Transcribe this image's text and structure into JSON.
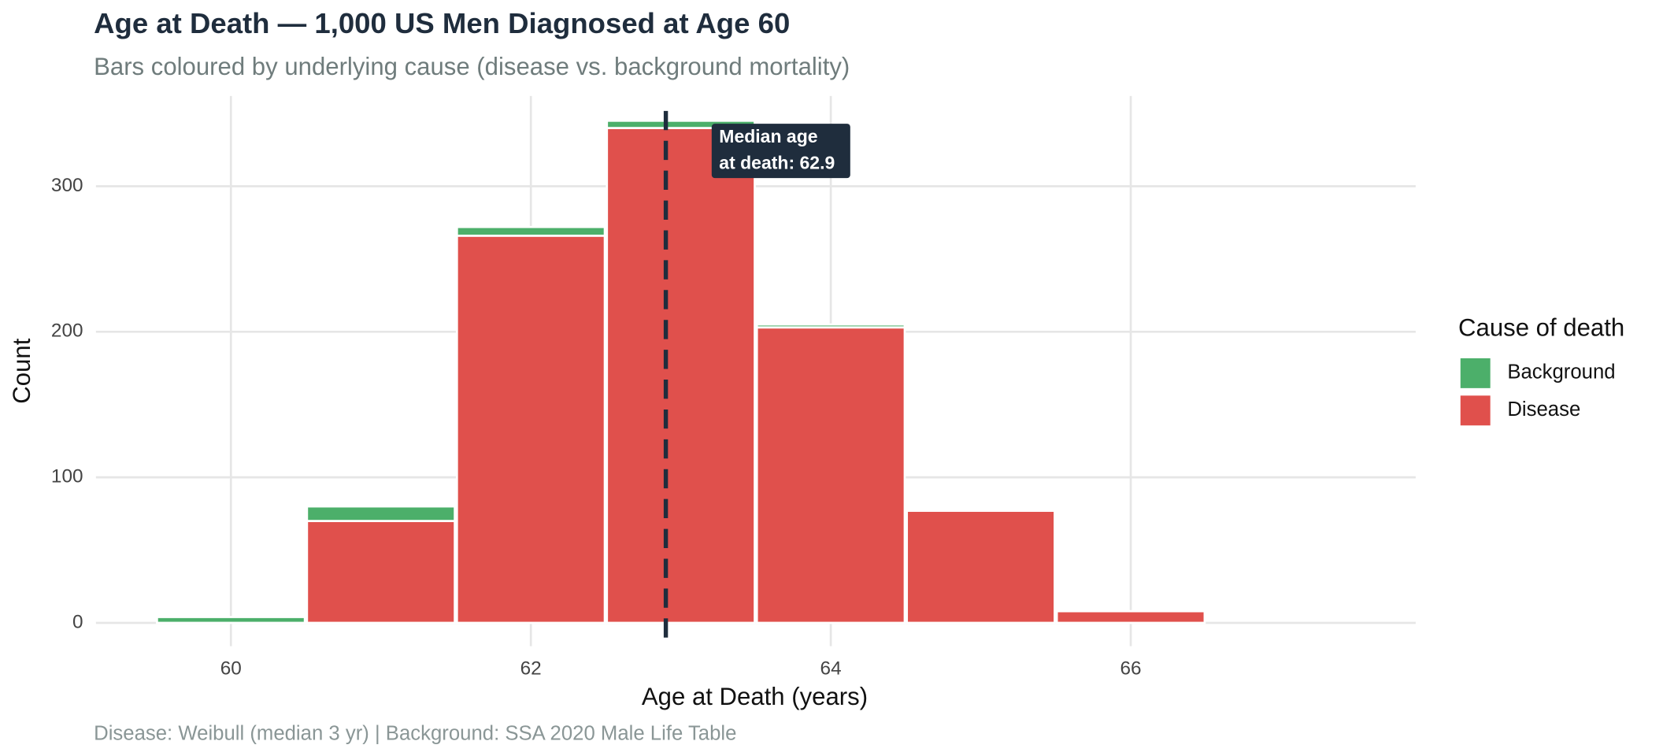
{
  "chart_data": {
    "type": "histogram",
    "stacked": true,
    "title": "Age at Death — 1,000 US Men Diagnosed at Age 60",
    "subtitle": "Bars coloured by underlying cause (disease vs. background mortality)",
    "caption": "Disease: Weibull (median 3 yr)  |  Background: SSA 2020 Male Life Table",
    "x_label": "Age at Death (years)",
    "y_label": "Count",
    "bins": [
      59.5,
      60.5,
      61.5,
      62.5,
      63.5,
      64.5,
      65.5,
      66.5
    ],
    "series": [
      {
        "name": "Disease",
        "color": "#e0504c",
        "values": [
          0,
          70,
          266,
          340,
          203,
          77,
          8
        ]
      },
      {
        "name": "Background",
        "color": "#4caf6a",
        "values": [
          4,
          10,
          6,
          5,
          2,
          0,
          0
        ]
      }
    ],
    "xlim": [
      59.1,
      67.9
    ],
    "xticks": [
      60,
      62,
      64,
      66
    ],
    "ylim": [
      -16,
      362
    ],
    "yticks": [
      0,
      100,
      200,
      300
    ],
    "grid": true,
    "legend_position": "right",
    "legend_title": "Cause of death",
    "median_x": 62.9,
    "annotation": [
      "Median age",
      "at death: 62.9"
    ]
  }
}
